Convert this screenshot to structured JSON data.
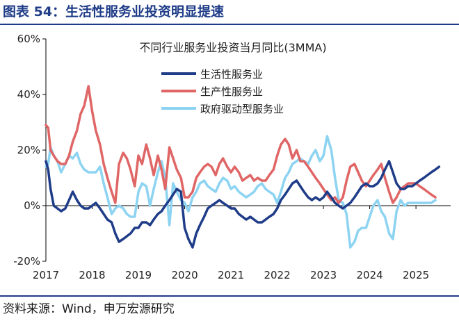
{
  "figure": {
    "title": "图表 54：生活性服务业投资明显提速",
    "source": "资料来源：Wind，申万宏源研究"
  },
  "chart_data": {
    "type": "line",
    "title": "不同行业服务业投资当月同比(3MMA)",
    "xlabel": "",
    "ylabel": "",
    "x_tick_labels": [
      "2017",
      "2018",
      "2019",
      "2020",
      "2021",
      "2022",
      "2023",
      "2024",
      "2025"
    ],
    "y_tick_labels": [
      "60%",
      "40%",
      "20%",
      "0%",
      "-20%"
    ],
    "y_ticks": [
      60,
      40,
      20,
      0,
      -20
    ],
    "ylim": [
      -20,
      60
    ],
    "xlim": [
      2017.0,
      2025.75
    ],
    "grid": false,
    "legend_position": "upper-center",
    "series": [
      {
        "name": "生活性服务业",
        "color": "#1f3c88",
        "points": [
          [
            2017.0,
            16
          ],
          [
            2017.05,
            13
          ],
          [
            2017.1,
            6
          ],
          [
            2017.17,
            0
          ],
          [
            2017.25,
            -1
          ],
          [
            2017.33,
            -2
          ],
          [
            2017.42,
            -1
          ],
          [
            2017.5,
            2
          ],
          [
            2017.58,
            5
          ],
          [
            2017.67,
            2
          ],
          [
            2017.75,
            0
          ],
          [
            2017.83,
            -1
          ],
          [
            2017.92,
            -1
          ],
          [
            2018.0,
            0
          ],
          [
            2018.08,
            1
          ],
          [
            2018.17,
            -1
          ],
          [
            2018.25,
            -3
          ],
          [
            2018.33,
            -5
          ],
          [
            2018.42,
            -6
          ],
          [
            2018.5,
            -10
          ],
          [
            2018.58,
            -13
          ],
          [
            2018.67,
            -12
          ],
          [
            2018.75,
            -11
          ],
          [
            2018.83,
            -10
          ],
          [
            2018.92,
            -8
          ],
          [
            2019.0,
            -8
          ],
          [
            2019.08,
            -6
          ],
          [
            2019.17,
            -6
          ],
          [
            2019.25,
            -7
          ],
          [
            2019.33,
            -5
          ],
          [
            2019.42,
            -3
          ],
          [
            2019.5,
            -2
          ],
          [
            2019.58,
            0
          ],
          [
            2019.67,
            2
          ],
          [
            2019.75,
            4
          ],
          [
            2019.83,
            6
          ],
          [
            2019.92,
            5
          ],
          [
            2020.0,
            -8
          ],
          [
            2020.08,
            -12
          ],
          [
            2020.17,
            -15
          ],
          [
            2020.25,
            -10
          ],
          [
            2020.33,
            -7
          ],
          [
            2020.42,
            -4
          ],
          [
            2020.5,
            -1
          ],
          [
            2020.58,
            0
          ],
          [
            2020.67,
            1
          ],
          [
            2020.75,
            2
          ],
          [
            2020.83,
            1
          ],
          [
            2020.92,
            0
          ],
          [
            2021.0,
            -1
          ],
          [
            2021.08,
            -1
          ],
          [
            2021.17,
            -3
          ],
          [
            2021.25,
            -4
          ],
          [
            2021.33,
            -5
          ],
          [
            2021.42,
            -4
          ],
          [
            2021.5,
            -5
          ],
          [
            2021.58,
            -6
          ],
          [
            2021.67,
            -6
          ],
          [
            2021.75,
            -5
          ],
          [
            2021.83,
            -4
          ],
          [
            2021.92,
            -3
          ],
          [
            2022.0,
            -1
          ],
          [
            2022.08,
            2
          ],
          [
            2022.17,
            4
          ],
          [
            2022.25,
            6
          ],
          [
            2022.33,
            8
          ],
          [
            2022.42,
            9
          ],
          [
            2022.5,
            7
          ],
          [
            2022.58,
            5
          ],
          [
            2022.67,
            3
          ],
          [
            2022.75,
            2
          ],
          [
            2022.83,
            3
          ],
          [
            2022.92,
            2
          ],
          [
            2023.0,
            3
          ],
          [
            2023.08,
            5
          ],
          [
            2023.17,
            3
          ],
          [
            2023.25,
            1
          ],
          [
            2023.33,
            0
          ],
          [
            2023.42,
            -1
          ],
          [
            2023.5,
            0
          ],
          [
            2023.58,
            1
          ],
          [
            2023.67,
            3
          ],
          [
            2023.75,
            5
          ],
          [
            2023.83,
            7
          ],
          [
            2023.92,
            8
          ],
          [
            2024.0,
            7
          ],
          [
            2024.08,
            7
          ],
          [
            2024.17,
            8
          ],
          [
            2024.25,
            10
          ],
          [
            2024.33,
            13
          ],
          [
            2024.42,
            16
          ],
          [
            2024.5,
            12
          ],
          [
            2024.58,
            8
          ],
          [
            2024.67,
            6
          ],
          [
            2024.75,
            6
          ],
          [
            2024.83,
            7
          ],
          [
            2024.92,
            7
          ],
          [
            2025.0,
            8
          ],
          [
            2025.08,
            9
          ],
          [
            2025.17,
            10
          ],
          [
            2025.25,
            11
          ],
          [
            2025.33,
            12
          ],
          [
            2025.42,
            13
          ],
          [
            2025.5,
            14
          ]
        ]
      },
      {
        "name": "生产性服务业",
        "color": "#e06666",
        "points": [
          [
            2017.0,
            29
          ],
          [
            2017.05,
            28
          ],
          [
            2017.1,
            20
          ],
          [
            2017.17,
            18
          ],
          [
            2017.25,
            16
          ],
          [
            2017.33,
            15
          ],
          [
            2017.42,
            15
          ],
          [
            2017.5,
            18
          ],
          [
            2017.58,
            23
          ],
          [
            2017.67,
            27
          ],
          [
            2017.75,
            33
          ],
          [
            2017.83,
            36
          ],
          [
            2017.92,
            43
          ],
          [
            2018.0,
            34
          ],
          [
            2018.08,
            27
          ],
          [
            2018.17,
            22
          ],
          [
            2018.25,
            15
          ],
          [
            2018.33,
            10
          ],
          [
            2018.42,
            5
          ],
          [
            2018.5,
            1
          ],
          [
            2018.58,
            15
          ],
          [
            2018.67,
            19
          ],
          [
            2018.75,
            17
          ],
          [
            2018.83,
            13
          ],
          [
            2018.92,
            7
          ],
          [
            2019.0,
            18
          ],
          [
            2019.08,
            15
          ],
          [
            2019.17,
            22
          ],
          [
            2019.25,
            17
          ],
          [
            2019.33,
            11
          ],
          [
            2019.42,
            18
          ],
          [
            2019.5,
            13
          ],
          [
            2019.58,
            6
          ],
          [
            2019.67,
            21
          ],
          [
            2019.75,
            17
          ],
          [
            2019.83,
            13
          ],
          [
            2019.92,
            10
          ],
          [
            2020.0,
            3
          ],
          [
            2020.08,
            3
          ],
          [
            2020.17,
            5
          ],
          [
            2020.25,
            10
          ],
          [
            2020.33,
            12
          ],
          [
            2020.42,
            14
          ],
          [
            2020.5,
            15
          ],
          [
            2020.58,
            14
          ],
          [
            2020.67,
            11
          ],
          [
            2020.75,
            15
          ],
          [
            2020.83,
            17
          ],
          [
            2020.92,
            14
          ],
          [
            2021.0,
            12
          ],
          [
            2021.08,
            14
          ],
          [
            2021.17,
            12
          ],
          [
            2021.25,
            9
          ],
          [
            2021.33,
            10
          ],
          [
            2021.42,
            11
          ],
          [
            2021.5,
            9
          ],
          [
            2021.58,
            10
          ],
          [
            2021.67,
            9
          ],
          [
            2021.75,
            9
          ],
          [
            2021.83,
            11
          ],
          [
            2021.92,
            13
          ],
          [
            2022.0,
            18
          ],
          [
            2022.08,
            22
          ],
          [
            2022.17,
            24
          ],
          [
            2022.25,
            22
          ],
          [
            2022.33,
            17
          ],
          [
            2022.42,
            20
          ],
          [
            2022.5,
            16
          ],
          [
            2022.58,
            16
          ],
          [
            2022.67,
            14
          ],
          [
            2022.75,
            12
          ],
          [
            2022.83,
            10
          ],
          [
            2022.92,
            8
          ],
          [
            2023.0,
            6
          ],
          [
            2023.08,
            4
          ],
          [
            2023.17,
            2
          ],
          [
            2023.25,
            3
          ],
          [
            2023.33,
            1
          ],
          [
            2023.42,
            3
          ],
          [
            2023.5,
            9
          ],
          [
            2023.58,
            14
          ],
          [
            2023.67,
            15
          ],
          [
            2023.75,
            12
          ],
          [
            2023.83,
            9
          ],
          [
            2023.92,
            7
          ],
          [
            2024.0,
            9
          ],
          [
            2024.08,
            11
          ],
          [
            2024.17,
            13
          ],
          [
            2024.25,
            15
          ],
          [
            2024.33,
            10
          ],
          [
            2024.42,
            5
          ],
          [
            2024.5,
            1
          ],
          [
            2024.58,
            3
          ],
          [
            2024.67,
            6
          ],
          [
            2024.75,
            7
          ],
          [
            2024.83,
            8
          ],
          [
            2024.92,
            8
          ],
          [
            2025.0,
            8
          ],
          [
            2025.08,
            7
          ],
          [
            2025.17,
            6
          ],
          [
            2025.25,
            5
          ],
          [
            2025.33,
            4
          ],
          [
            2025.42,
            3
          ]
        ]
      },
      {
        "name": "政府驱动型服务业",
        "color": "#8dd3f2",
        "points": [
          [
            2017.0,
            14
          ],
          [
            2017.05,
            15
          ],
          [
            2017.1,
            21
          ],
          [
            2017.17,
            18
          ],
          [
            2017.25,
            16
          ],
          [
            2017.33,
            12
          ],
          [
            2017.42,
            15
          ],
          [
            2017.5,
            18
          ],
          [
            2017.58,
            17
          ],
          [
            2017.67,
            19
          ],
          [
            2017.75,
            15
          ],
          [
            2017.83,
            13
          ],
          [
            2017.92,
            12
          ],
          [
            2018.0,
            12
          ],
          [
            2018.08,
            12
          ],
          [
            2018.17,
            14
          ],
          [
            2018.25,
            8
          ],
          [
            2018.33,
            3
          ],
          [
            2018.42,
            -3
          ],
          [
            2018.5,
            -1
          ],
          [
            2018.58,
            0
          ],
          [
            2018.67,
            -1
          ],
          [
            2018.75,
            -3
          ],
          [
            2018.83,
            -4
          ],
          [
            2018.92,
            -4
          ],
          [
            2019.0,
            5
          ],
          [
            2019.08,
            8
          ],
          [
            2019.17,
            7
          ],
          [
            2019.25,
            0
          ],
          [
            2019.33,
            6
          ],
          [
            2019.42,
            12
          ],
          [
            2019.5,
            16
          ],
          [
            2019.58,
            10
          ],
          [
            2019.67,
            -7
          ],
          [
            2019.75,
            8
          ],
          [
            2019.83,
            5
          ],
          [
            2019.92,
            2
          ],
          [
            2020.0,
            1
          ],
          [
            2020.08,
            -2
          ],
          [
            2020.17,
            3
          ],
          [
            2020.25,
            5
          ],
          [
            2020.33,
            8
          ],
          [
            2020.42,
            9
          ],
          [
            2020.5,
            7
          ],
          [
            2020.58,
            6
          ],
          [
            2020.67,
            5
          ],
          [
            2020.75,
            8
          ],
          [
            2020.83,
            10
          ],
          [
            2020.92,
            9
          ],
          [
            2021.0,
            6
          ],
          [
            2021.08,
            7
          ],
          [
            2021.17,
            5
          ],
          [
            2021.25,
            4
          ],
          [
            2021.33,
            3
          ],
          [
            2021.42,
            4
          ],
          [
            2021.5,
            5
          ],
          [
            2021.58,
            7
          ],
          [
            2021.67,
            8
          ],
          [
            2021.75,
            6
          ],
          [
            2021.83,
            5
          ],
          [
            2021.92,
            4
          ],
          [
            2022.0,
            1
          ],
          [
            2022.08,
            5
          ],
          [
            2022.17,
            10
          ],
          [
            2022.25,
            12
          ],
          [
            2022.33,
            15
          ],
          [
            2022.42,
            16
          ],
          [
            2022.5,
            17
          ],
          [
            2022.58,
            16
          ],
          [
            2022.67,
            15
          ],
          [
            2022.75,
            18
          ],
          [
            2022.83,
            20
          ],
          [
            2022.92,
            16
          ],
          [
            2023.0,
            18
          ],
          [
            2023.08,
            25
          ],
          [
            2023.17,
            20
          ],
          [
            2023.25,
            10
          ],
          [
            2023.33,
            2
          ],
          [
            2023.42,
            1
          ],
          [
            2023.5,
            -3
          ],
          [
            2023.58,
            -15
          ],
          [
            2023.67,
            -13
          ],
          [
            2023.75,
            -9
          ],
          [
            2023.83,
            -8
          ],
          [
            2023.92,
            -8
          ],
          [
            2024.0,
            -4
          ],
          [
            2024.08,
            0
          ],
          [
            2024.17,
            2
          ],
          [
            2024.25,
            -2
          ],
          [
            2024.33,
            -4
          ],
          [
            2024.42,
            -10
          ],
          [
            2024.5,
            -12
          ],
          [
            2024.58,
            -2
          ],
          [
            2024.67,
            2
          ],
          [
            2024.75,
            0
          ],
          [
            2024.83,
            1
          ],
          [
            2024.92,
            1
          ],
          [
            2025.0,
            1
          ],
          [
            2025.08,
            1
          ],
          [
            2025.17,
            1
          ],
          [
            2025.25,
            1
          ],
          [
            2025.33,
            1
          ],
          [
            2025.42,
            2
          ]
        ]
      }
    ]
  }
}
